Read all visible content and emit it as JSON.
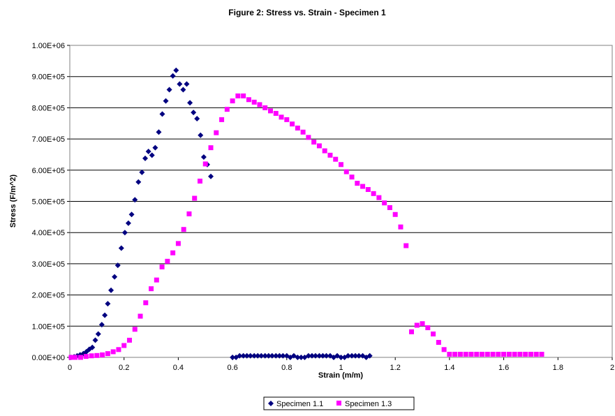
{
  "chart_data": {
    "type": "scatter",
    "title": "Figure 2: Stress vs. Strain - Specimen 1",
    "xlabel": "Strain (m/m)",
    "ylabel": "Stress (F/m^2)",
    "xlim": [
      0,
      2
    ],
    "ylim": [
      0,
      1000000
    ],
    "x_ticks": [
      0,
      0.2,
      0.4,
      0.6,
      0.8,
      1,
      1.2,
      1.4,
      1.6,
      1.8,
      2
    ],
    "x_tick_labels": [
      "0",
      "0.2",
      "0.4",
      "0.6",
      "0.8",
      "1",
      "1.2",
      "1.4",
      "1.6",
      "1.8",
      "2"
    ],
    "y_ticks": [
      0,
      100000,
      200000,
      300000,
      400000,
      500000,
      600000,
      700000,
      800000,
      900000,
      1000000
    ],
    "y_tick_labels": [
      "0.00E+00",
      "1.00E+05",
      "2.00E+05",
      "3.00E+05",
      "4.00E+05",
      "5.00E+05",
      "6.00E+05",
      "7.00E+05",
      "8.00E+05",
      "9.00E+05",
      "1.00E+06"
    ],
    "grid": "horizontal",
    "legend_position": "bottom",
    "series": [
      {
        "name": "Specimen 1.1",
        "marker": "diamond",
        "color": "#000080",
        "points": [
          [
            0.005,
            0
          ],
          [
            0.016,
            2000
          ],
          [
            0.027,
            5000
          ],
          [
            0.038,
            8000
          ],
          [
            0.05,
            12000
          ],
          [
            0.061,
            18000
          ],
          [
            0.072,
            26000
          ],
          [
            0.083,
            32000
          ],
          [
            0.094,
            55000
          ],
          [
            0.105,
            75000
          ],
          [
            0.118,
            105000
          ],
          [
            0.129,
            135000
          ],
          [
            0.14,
            172000
          ],
          [
            0.152,
            215000
          ],
          [
            0.165,
            258000
          ],
          [
            0.177,
            295000
          ],
          [
            0.19,
            350000
          ],
          [
            0.203,
            400000
          ],
          [
            0.216,
            430000
          ],
          [
            0.228,
            458000
          ],
          [
            0.24,
            505000
          ],
          [
            0.253,
            562000
          ],
          [
            0.266,
            593000
          ],
          [
            0.278,
            638000
          ],
          [
            0.29,
            660000
          ],
          [
            0.303,
            648000
          ],
          [
            0.315,
            672000
          ],
          [
            0.328,
            722000
          ],
          [
            0.341,
            780000
          ],
          [
            0.354,
            822000
          ],
          [
            0.367,
            858000
          ],
          [
            0.38,
            902000
          ],
          [
            0.392,
            920000
          ],
          [
            0.405,
            876000
          ],
          [
            0.418,
            858000
          ],
          [
            0.431,
            876000
          ],
          [
            0.443,
            816000
          ],
          [
            0.456,
            785000
          ],
          [
            0.469,
            765000
          ],
          [
            0.482,
            712000
          ],
          [
            0.494,
            642000
          ],
          [
            0.507,
            618000
          ],
          [
            0.52,
            580000
          ],
          [
            0.6,
            0
          ],
          [
            0.613,
            0
          ],
          [
            0.626,
            5000
          ],
          [
            0.64,
            5000
          ],
          [
            0.653,
            5000
          ],
          [
            0.666,
            5000
          ],
          [
            0.68,
            5000
          ],
          [
            0.693,
            5000
          ],
          [
            0.706,
            5000
          ],
          [
            0.72,
            5000
          ],
          [
            0.733,
            5000
          ],
          [
            0.746,
            5000
          ],
          [
            0.76,
            5000
          ],
          [
            0.773,
            5000
          ],
          [
            0.786,
            5000
          ],
          [
            0.8,
            5000
          ],
          [
            0.813,
            0
          ],
          [
            0.826,
            5000
          ],
          [
            0.84,
            0
          ],
          [
            0.853,
            0
          ],
          [
            0.866,
            0
          ],
          [
            0.88,
            5000
          ],
          [
            0.893,
            5000
          ],
          [
            0.906,
            5000
          ],
          [
            0.92,
            5000
          ],
          [
            0.933,
            5000
          ],
          [
            0.946,
            5000
          ],
          [
            0.96,
            5000
          ],
          [
            0.973,
            0
          ],
          [
            0.986,
            5000
          ],
          [
            1.0,
            0
          ],
          [
            1.013,
            0
          ],
          [
            1.026,
            5000
          ],
          [
            1.04,
            5000
          ],
          [
            1.053,
            5000
          ],
          [
            1.066,
            5000
          ],
          [
            1.08,
            5000
          ],
          [
            1.093,
            0
          ],
          [
            1.106,
            5000
          ]
        ]
      },
      {
        "name": "Specimen 1.3",
        "marker": "square",
        "color": "#ff00ff",
        "points": [
          [
            0.005,
            0
          ],
          [
            0.02,
            0
          ],
          [
            0.04,
            0
          ],
          [
            0.06,
            3000
          ],
          [
            0.08,
            5000
          ],
          [
            0.1,
            6000
          ],
          [
            0.12,
            8000
          ],
          [
            0.14,
            12000
          ],
          [
            0.16,
            18000
          ],
          [
            0.18,
            25000
          ],
          [
            0.2,
            38000
          ],
          [
            0.22,
            55000
          ],
          [
            0.24,
            90000
          ],
          [
            0.26,
            132000
          ],
          [
            0.28,
            175000
          ],
          [
            0.3,
            220000
          ],
          [
            0.32,
            248000
          ],
          [
            0.34,
            290000
          ],
          [
            0.36,
            308000
          ],
          [
            0.38,
            335000
          ],
          [
            0.4,
            365000
          ],
          [
            0.42,
            410000
          ],
          [
            0.44,
            460000
          ],
          [
            0.46,
            510000
          ],
          [
            0.48,
            565000
          ],
          [
            0.5,
            620000
          ],
          [
            0.52,
            672000
          ],
          [
            0.54,
            720000
          ],
          [
            0.56,
            762000
          ],
          [
            0.58,
            795000
          ],
          [
            0.6,
            822000
          ],
          [
            0.62,
            838000
          ],
          [
            0.64,
            838000
          ],
          [
            0.66,
            826000
          ],
          [
            0.68,
            818000
          ],
          [
            0.7,
            810000
          ],
          [
            0.72,
            800000
          ],
          [
            0.74,
            790000
          ],
          [
            0.76,
            782000
          ],
          [
            0.78,
            770000
          ],
          [
            0.8,
            762000
          ],
          [
            0.82,
            748000
          ],
          [
            0.84,
            735000
          ],
          [
            0.86,
            722000
          ],
          [
            0.88,
            705000
          ],
          [
            0.9,
            690000
          ],
          [
            0.92,
            678000
          ],
          [
            0.94,
            662000
          ],
          [
            0.96,
            648000
          ],
          [
            0.98,
            635000
          ],
          [
            1.0,
            618000
          ],
          [
            1.02,
            595000
          ],
          [
            1.04,
            578000
          ],
          [
            1.06,
            558000
          ],
          [
            1.08,
            548000
          ],
          [
            1.1,
            538000
          ],
          [
            1.12,
            525000
          ],
          [
            1.14,
            512000
          ],
          [
            1.16,
            495000
          ],
          [
            1.18,
            480000
          ],
          [
            1.2,
            458000
          ],
          [
            1.22,
            418000
          ],
          [
            1.24,
            358000
          ],
          [
            1.26,
            82000
          ],
          [
            1.28,
            103000
          ],
          [
            1.3,
            108000
          ],
          [
            1.32,
            95000
          ],
          [
            1.34,
            75000
          ],
          [
            1.36,
            48000
          ],
          [
            1.38,
            25000
          ],
          [
            1.4,
            10000
          ],
          [
            1.42,
            10000
          ],
          [
            1.44,
            10000
          ],
          [
            1.46,
            10000
          ],
          [
            1.48,
            10000
          ],
          [
            1.5,
            10000
          ],
          [
            1.52,
            10000
          ],
          [
            1.54,
            10000
          ],
          [
            1.56,
            10000
          ],
          [
            1.58,
            10000
          ],
          [
            1.6,
            10000
          ],
          [
            1.62,
            10000
          ],
          [
            1.64,
            10000
          ],
          [
            1.66,
            10000
          ],
          [
            1.68,
            10000
          ],
          [
            1.7,
            10000
          ],
          [
            1.72,
            10000
          ],
          [
            1.74,
            10000
          ]
        ]
      }
    ]
  }
}
